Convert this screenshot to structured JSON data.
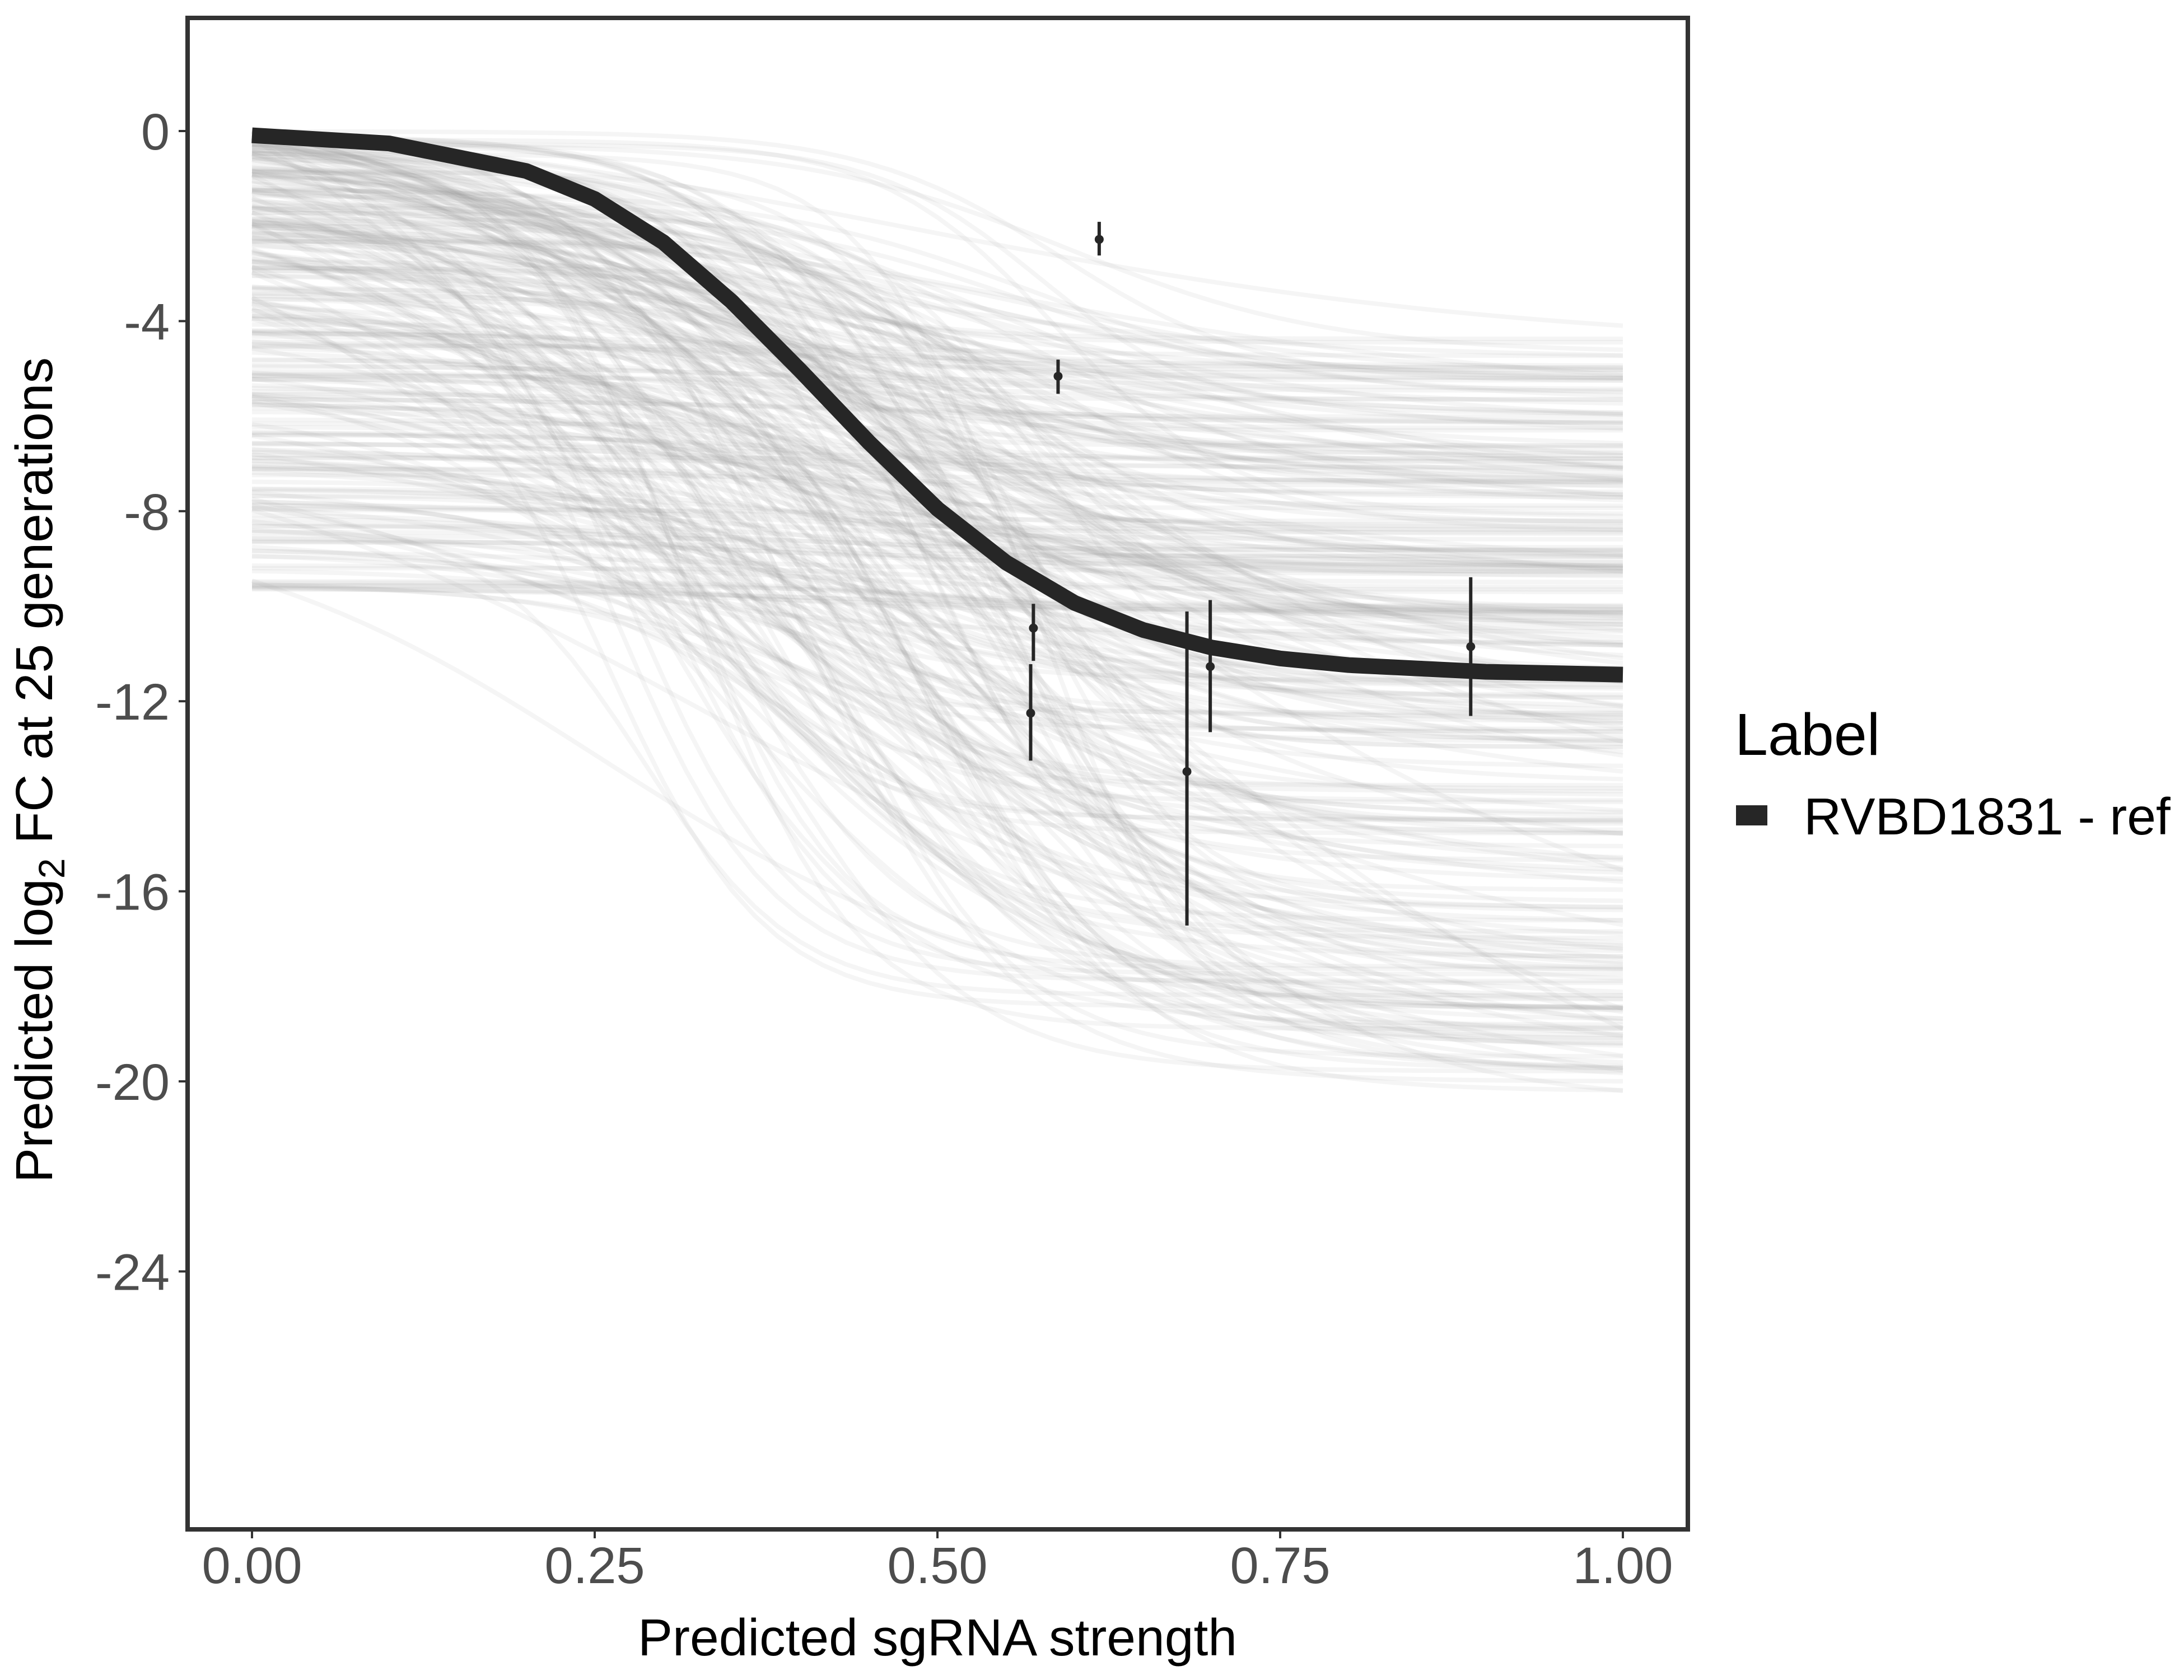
{
  "chart_data": {
    "type": "line",
    "title": "",
    "xlabel": "Predicted sgRNA strength",
    "ylabel": {
      "prefix": "Predicted  log",
      "subscript": "2",
      "suffix": " FC at 25 generations"
    },
    "xlim": [
      -0.05,
      1.05
    ],
    "ylim": [
      -29.5,
      2.4
    ],
    "x_ticks": [
      0.0,
      0.25,
      0.5,
      0.75,
      1.0
    ],
    "x_tick_labels": [
      "0.00",
      "0.25",
      "0.50",
      "0.75",
      "1.00"
    ],
    "y_ticks": [
      0,
      -4,
      -8,
      -12,
      -16,
      -20,
      -24
    ],
    "y_tick_labels": [
      "0",
      "-4",
      "-8",
      "-12",
      "-16",
      "-20",
      "-24"
    ],
    "grid": false,
    "legend": {
      "title": "Label",
      "position": "right",
      "entries": [
        {
          "label": "RVBD1831 - ref",
          "color": "#262626"
        }
      ]
    },
    "series": [
      {
        "name": "RVBD1831 - ref",
        "kind": "fitted-logistic-curve",
        "color": "#262626",
        "x": [
          0.0,
          0.1,
          0.2,
          0.25,
          0.3,
          0.35,
          0.4,
          0.45,
          0.5,
          0.55,
          0.6,
          0.65,
          0.7,
          0.75,
          0.8,
          0.9,
          1.0
        ],
        "y": [
          -0.09,
          -0.26,
          -0.84,
          -1.43,
          -2.34,
          -3.59,
          -5.04,
          -6.55,
          -7.95,
          -9.08,
          -9.93,
          -10.5,
          -10.87,
          -11.1,
          -11.24,
          -11.38,
          -11.44
        ]
      },
      {
        "name": "posterior draws",
        "kind": "ensemble-of-logistic-curves",
        "color": "#9e9e9e",
        "count_approx": 300,
        "y_at_x0_range": [
          -10.2,
          0.0
        ],
        "y_at_x1_range": [
          -20.3,
          -4.0
        ]
      }
    ],
    "points": [
      {
        "x": 0.618,
        "y": -2.28,
        "ymin": -2.62,
        "ymax": -1.91
      },
      {
        "x": 0.588,
        "y": -5.16,
        "ymin": -5.53,
        "ymax": -4.81
      },
      {
        "x": 0.57,
        "y": -10.46,
        "ymin": -11.15,
        "ymax": -9.95
      },
      {
        "x": 0.568,
        "y": -12.25,
        "ymin": -13.25,
        "ymax": -11.22
      },
      {
        "x": 0.682,
        "y": -13.48,
        "ymin": -16.72,
        "ymax": -10.11
      },
      {
        "x": 0.699,
        "y": -11.27,
        "ymin": -12.65,
        "ymax": -9.87
      },
      {
        "x": 0.889,
        "y": -10.85,
        "ymin": -12.31,
        "ymax": -9.39
      }
    ],
    "colors": {
      "panel_border": "#333333",
      "tick_text": "#4d4d4d",
      "ensemble_line": "#9e9e9e",
      "reference_line": "#262626",
      "point": "#262626"
    }
  }
}
